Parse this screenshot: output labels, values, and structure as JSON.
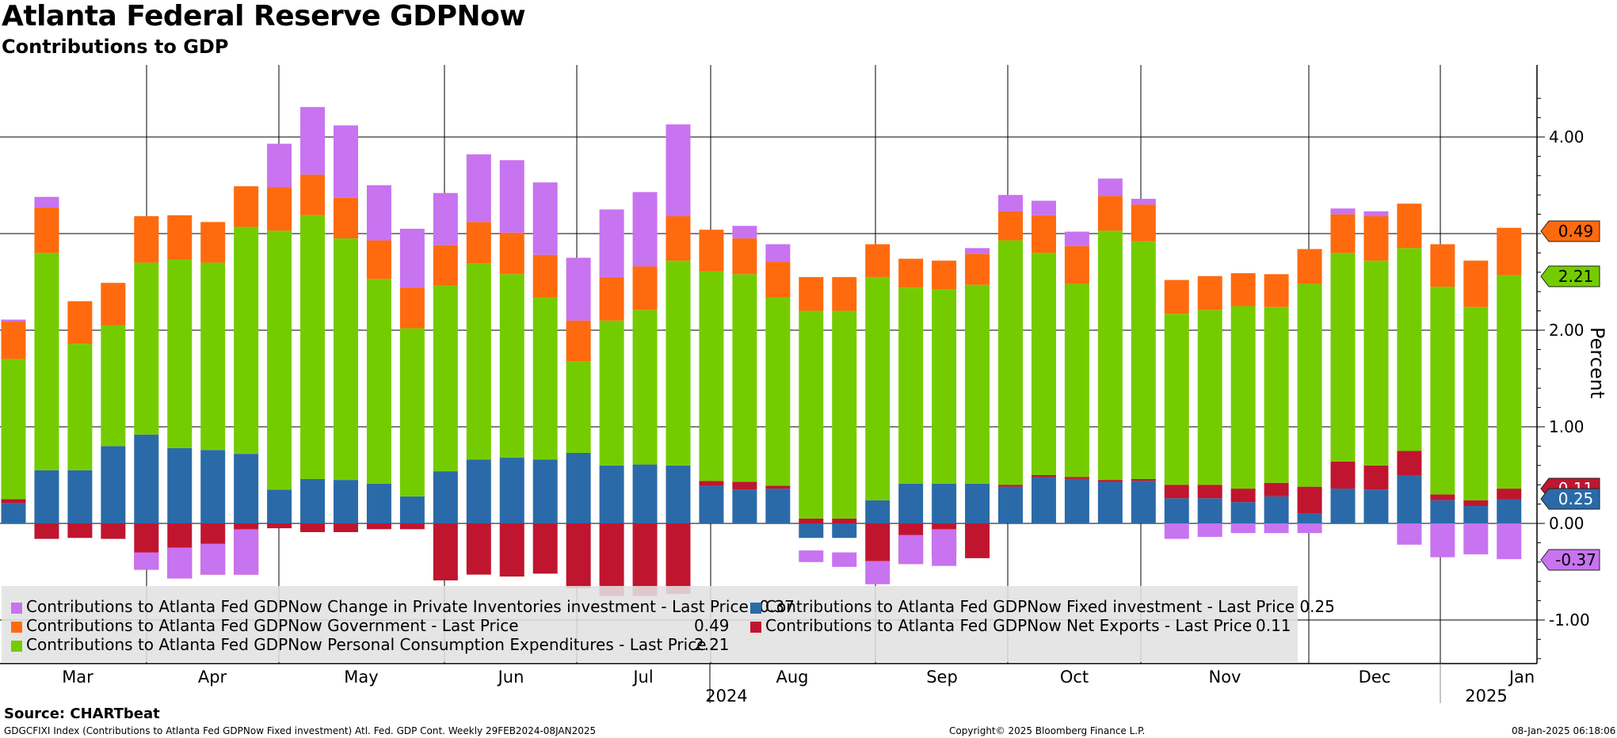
{
  "title": "Atlanta Federal Reserve GDPNow",
  "subtitle": "Contributions to GDP",
  "source": "Source: CHARTbeat",
  "footer": {
    "index_info": "GDGCFIXI Index (Contributions to Atlanta Fed GDPNow Fixed investment) Atl. Fed. GDP Cont.  Weekly 29FEB2024-08JAN2025",
    "copyright": "Copyright© 2025 Bloomberg Finance L.P.",
    "timestamp": "08-Jan-2025 06:18:06"
  },
  "legend": [
    {
      "label": "Contributions to Atlanta Fed GDPNow Change in Private Inventories investment - Last Price",
      "value": "-0.37",
      "color": "#c873f0"
    },
    {
      "label": "Contributions to Atlanta Fed GDPNow Fixed investment - Last Price",
      "value": "0.25",
      "color": "#2b6aa8"
    },
    {
      "label": "Contributions to Atlanta Fed GDPNow Government - Last Price",
      "value": "0.49",
      "color": "#ff6a0e"
    },
    {
      "label": "Contributions to Atlanta Fed GDPNow Net Exports - Last Price",
      "value": "0.11",
      "color": "#c0152f"
    },
    {
      "label": "Contributions to Atlanta Fed GDPNow Personal Consumption Expenditures - Last Price",
      "value": "2.21",
      "color": "#74cc00"
    }
  ],
  "chart_data": {
    "type": "bar",
    "stacked": true,
    "x_labels": [
      "Mar",
      "Apr",
      "May",
      "Jun",
      "Jul",
      "Aug",
      "Sep",
      "Oct",
      "Nov",
      "Dec",
      "Jan"
    ],
    "year_labels": [
      "2024",
      "2025"
    ],
    "ylabel": "Percent",
    "ylim": [
      -1.45,
      4.7
    ],
    "yticks": [
      "4.00",
      "2.00",
      "1.00",
      "0.00",
      "-1.00"
    ],
    "gridlines_at": [
      4,
      3,
      2,
      1,
      0,
      -1
    ],
    "y_axis_side": "right",
    "series": [
      {
        "name": "Contributions to Atlanta Fed GDPNow Fixed investment",
        "color": "#2b6aa8",
        "values": [
          0.21,
          0.55,
          0.55,
          0.8,
          0.92,
          0.78,
          0.76,
          0.72,
          0.35,
          0.46,
          0.45,
          0.41,
          0.28,
          0.54,
          0.66,
          0.68,
          0.66,
          0.73,
          0.6,
          0.61,
          0.6,
          0.39,
          0.35,
          0.36,
          -0.15,
          -0.15,
          0.24,
          0.41,
          0.41,
          0.41,
          0.38,
          0.48,
          0.46,
          0.43,
          0.44,
          0.26,
          0.26,
          0.22,
          0.28,
          0.1,
          0.36,
          0.35,
          0.5,
          0.24,
          0.18,
          0.25
        ]
      },
      {
        "name": "Contributions to Atlanta Fed GDPNow Net Exports",
        "color": "#c0152f",
        "values": [
          0.04,
          -0.16,
          -0.15,
          -0.16,
          -0.48,
          -0.57,
          -0.53,
          -0.53,
          -0.05,
          -0.09,
          -0.09,
          -0.06,
          -0.06,
          -0.59,
          -0.53,
          -0.55,
          -0.52,
          -0.67,
          -0.75,
          -0.75,
          -0.73,
          0.05,
          0.08,
          0.03,
          0.05,
          0.05,
          -0.39,
          -0.42,
          -0.35,
          -0.36,
          0.02,
          0.02,
          0.02,
          0.02,
          0.02,
          0.14,
          0.14,
          0.14,
          0.14,
          0.28,
          0.28,
          0.25,
          0.25,
          0.06,
          0.06,
          0.11
        ]
      },
      {
        "name": "Contributions to Atlanta Fed GDPNow Personal Consumption Expenditures",
        "color": "#74cc00",
        "values": [
          1.45,
          2.25,
          1.31,
          1.25,
          1.78,
          1.95,
          1.94,
          2.35,
          2.68,
          2.73,
          2.5,
          2.12,
          1.74,
          1.92,
          2.03,
          1.9,
          1.68,
          0.95,
          1.5,
          1.6,
          2.12,
          2.17,
          2.15,
          1.95,
          2.15,
          2.15,
          2.31,
          2.03,
          2.01,
          2.06,
          2.53,
          2.3,
          2.0,
          2.58,
          2.46,
          1.77,
          1.81,
          1.89,
          1.82,
          2.1,
          2.16,
          2.12,
          2.1,
          2.15,
          2.0,
          2.21
        ]
      },
      {
        "name": "Contributions to Atlanta Fed GDPNow Government",
        "color": "#ff6a0e",
        "values": [
          0.39,
          0.47,
          0.44,
          0.44,
          0.48,
          0.46,
          0.42,
          0.42,
          0.45,
          0.42,
          0.42,
          0.4,
          0.42,
          0.42,
          0.43,
          0.43,
          0.44,
          0.42,
          0.45,
          0.45,
          0.46,
          0.43,
          0.37,
          0.37,
          0.35,
          0.35,
          0.34,
          0.3,
          0.3,
          0.32,
          0.3,
          0.39,
          0.39,
          0.36,
          0.38,
          0.35,
          0.35,
          0.34,
          0.34,
          0.36,
          0.4,
          0.46,
          0.46,
          0.44,
          0.48,
          0.49
        ]
      },
      {
        "name": "Contributions to Atlanta Fed GDPNow Change in Private Inventories",
        "color": "#c873f0",
        "values": [
          [
            0,
            0.02
          ],
          [
            0,
            0.11
          ],
          [
            0,
            0
          ],
          [
            0,
            0
          ],
          [
            -0.48,
            -0.3
          ],
          [
            -0.57,
            -0.25
          ],
          [
            -0.53,
            -0.21
          ],
          [
            -0.53,
            -0.06
          ],
          [
            0,
            0.45
          ],
          [
            0,
            0.7
          ],
          [
            0,
            0.75
          ],
          [
            0,
            0.57
          ],
          [
            0,
            0.61
          ],
          [
            0,
            0.54
          ],
          [
            0,
            0.7
          ],
          [
            0,
            0.75
          ],
          [
            0,
            0.75
          ],
          [
            0,
            0.65
          ],
          [
            0,
            0.7
          ],
          [
            0,
            0.77
          ],
          [
            0,
            0.95
          ],
          [
            0,
            0
          ],
          [
            0,
            0.13
          ],
          [
            0,
            0.18
          ],
          [
            -0.4,
            -0.28
          ],
          [
            -0.45,
            -0.3
          ],
          [
            -0.63,
            -0.39
          ],
          [
            -0.42,
            -0.12
          ],
          [
            -0.44,
            -0.06
          ],
          [
            0,
            0.06
          ],
          [
            0,
            0.17
          ],
          [
            0,
            0.15
          ],
          [
            0,
            0.15
          ],
          [
            0,
            0.18
          ],
          [
            0,
            0.06
          ],
          [
            -0.16,
            0
          ],
          [
            -0.14,
            0
          ],
          [
            -0.1,
            0
          ],
          [
            -0.1,
            0
          ],
          [
            -0.1,
            0
          ],
          [
            0,
            0.06
          ],
          [
            0,
            0.05
          ],
          [
            -0.22,
            0
          ],
          [
            -0.35,
            0
          ],
          [
            -0.32,
            0
          ],
          [
            -0.37,
            0
          ]
        ]
      }
    ],
    "last_value_tags": [
      {
        "value": "0.49",
        "color": "#ff6a0e"
      },
      {
        "value": "2.21",
        "color": "#74cc00"
      },
      {
        "value": "0.11",
        "color": "#c0152f"
      },
      {
        "value": "0.25",
        "color": "#2b6aa8"
      },
      {
        "value": "-0.37",
        "color": "#c873f0"
      }
    ]
  }
}
